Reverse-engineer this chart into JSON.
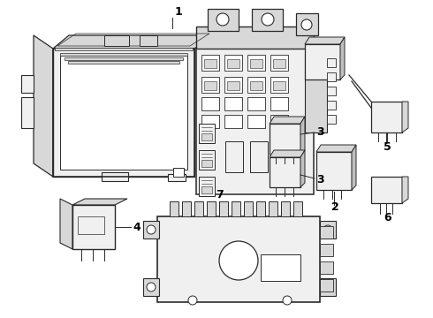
{
  "background_color": "#ffffff",
  "line_color": "#2a2a2a",
  "fill_light": "#f0f0f0",
  "fill_mid": "#d8d8d8",
  "fill_dark": "#c0c0c0",
  "figsize": [
    4.9,
    3.6
  ],
  "dpi": 100
}
